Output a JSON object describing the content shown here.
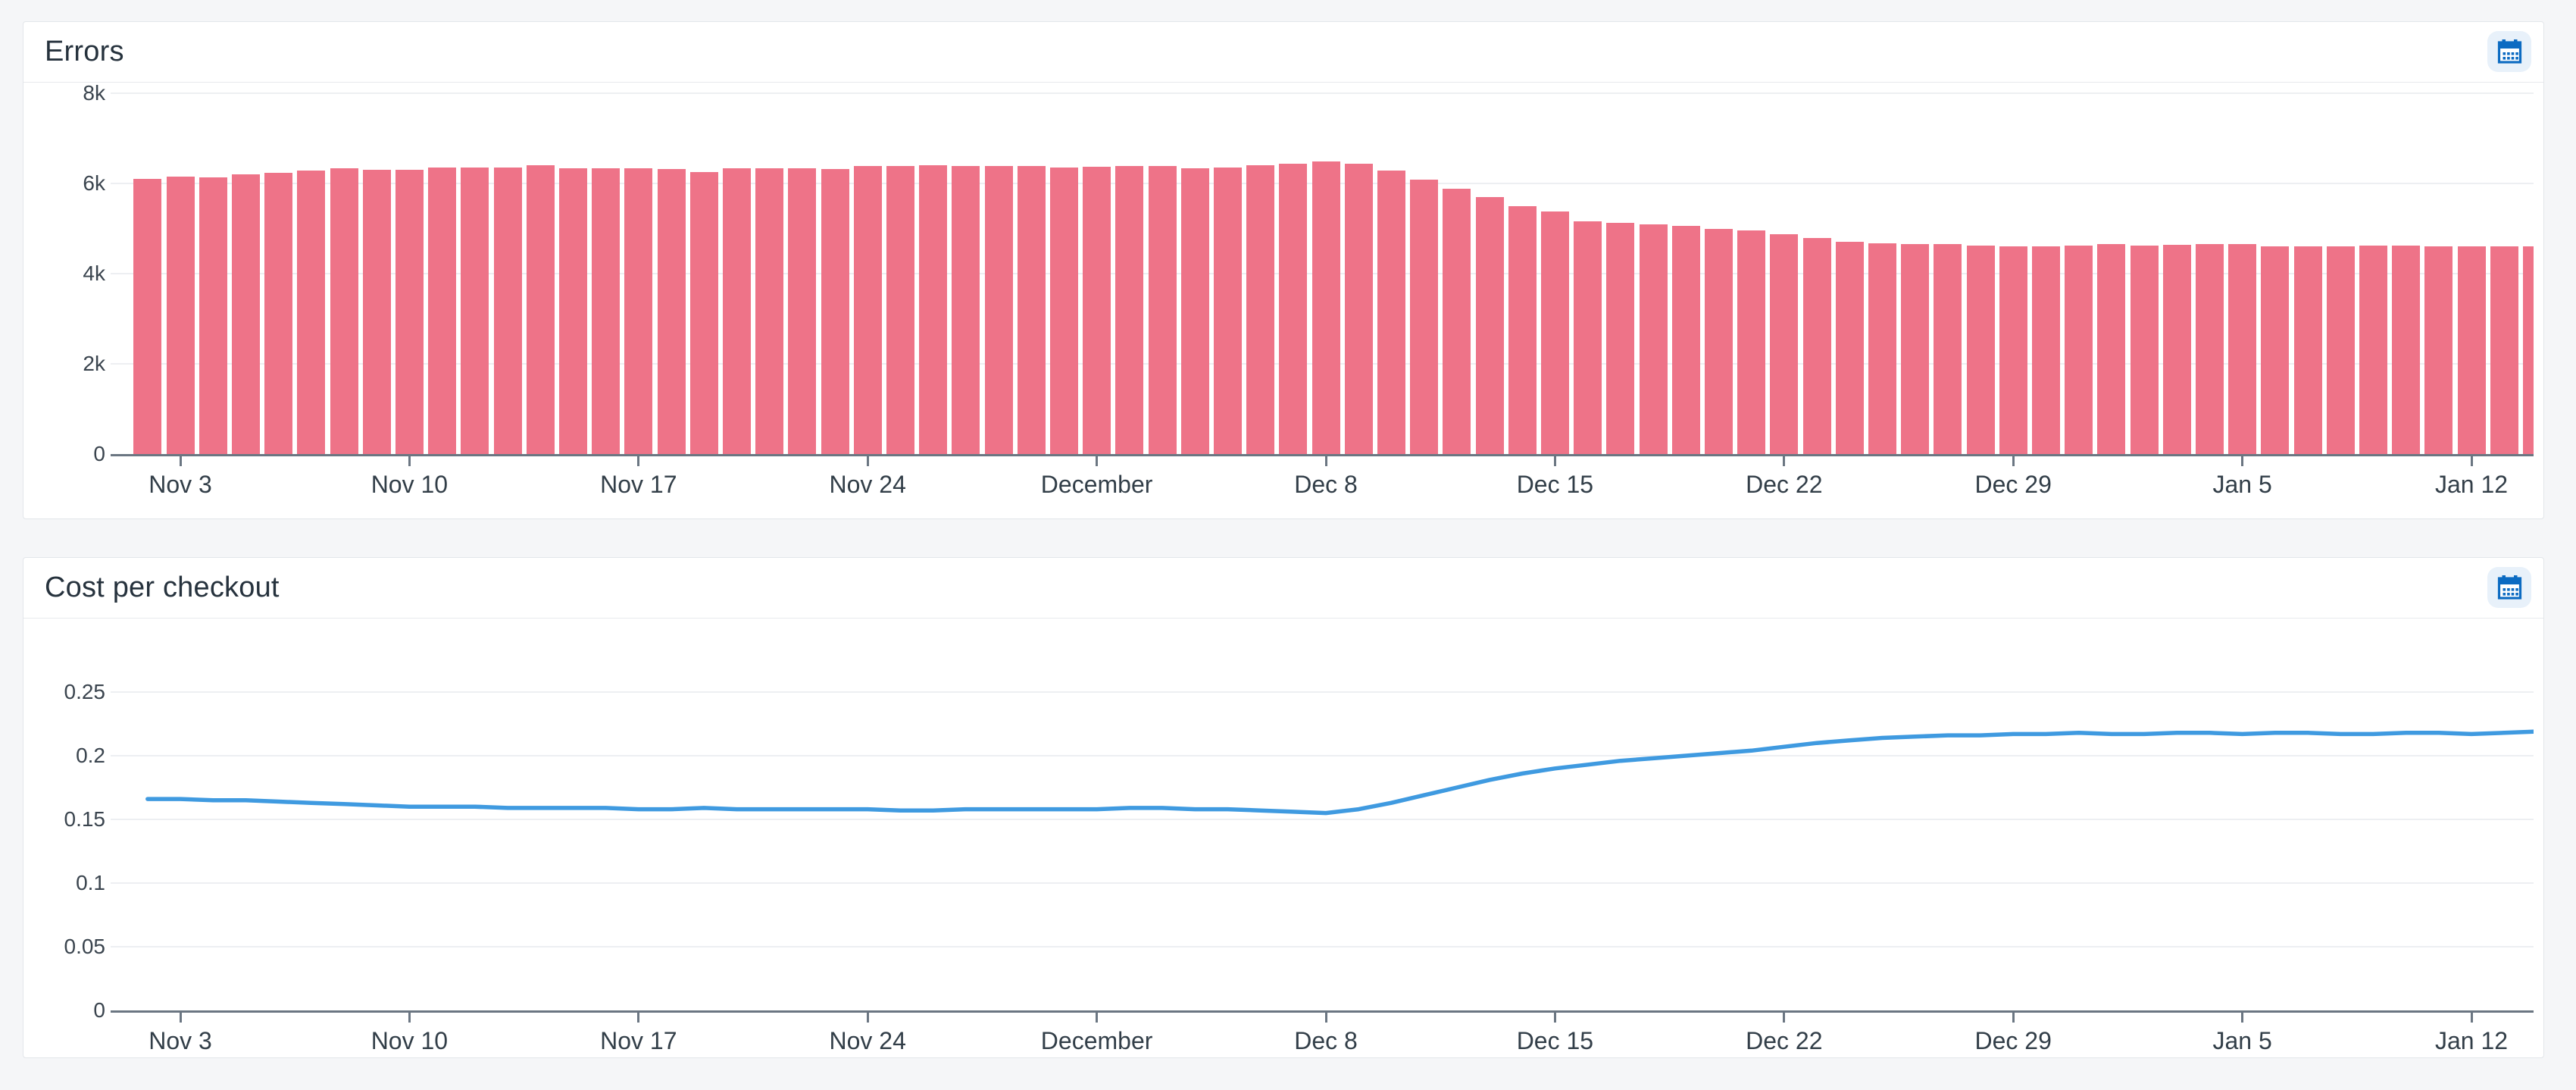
{
  "page": {
    "background": "#f5f6f8"
  },
  "panels": [
    {
      "title": "Errors"
    },
    {
      "title": "Cost per checkout"
    }
  ],
  "icons": {
    "calendar": {
      "name": "calendar-icon",
      "color": "#0c6bc2",
      "background": "#e8f1fa"
    }
  },
  "colors": {
    "bar": "#ee7388",
    "line": "#3f9ae0",
    "axis": "#6b7682",
    "grid": "#edeff2",
    "title_text": "#26323d",
    "label_text": "#323e48"
  },
  "chart_data": [
    {
      "type": "bar",
      "title": "Errors",
      "color": "#ee7388",
      "ylim": [
        0,
        8000
      ],
      "grid": true,
      "legend": false,
      "yticks": [
        {
          "label": "0",
          "value": 0
        },
        {
          "label": "2k",
          "value": 2000
        },
        {
          "label": "4k",
          "value": 4000
        },
        {
          "label": "6k",
          "value": 6000
        },
        {
          "label": "8k",
          "value": 8000
        }
      ],
      "xticks": [
        {
          "label": "Nov 3",
          "day_index": 1
        },
        {
          "label": "Nov 10",
          "day_index": 8
        },
        {
          "label": "Nov 17",
          "day_index": 15
        },
        {
          "label": "Nov 24",
          "day_index": 22
        },
        {
          "label": "December",
          "day_index": 29
        },
        {
          "label": "Dec 8",
          "day_index": 36
        },
        {
          "label": "Dec 15",
          "day_index": 43
        },
        {
          "label": "Dec 22",
          "day_index": 50
        },
        {
          "label": "Dec 29",
          "day_index": 57
        },
        {
          "label": "Jan 5",
          "day_index": 64
        },
        {
          "label": "Jan 12",
          "day_index": 71
        }
      ],
      "x": [
        "Nov 2",
        "Nov 3",
        "Nov 4",
        "Nov 5",
        "Nov 6",
        "Nov 7",
        "Nov 8",
        "Nov 9",
        "Nov 10",
        "Nov 11",
        "Nov 12",
        "Nov 13",
        "Nov 14",
        "Nov 15",
        "Nov 16",
        "Nov 17",
        "Nov 18",
        "Nov 19",
        "Nov 20",
        "Nov 21",
        "Nov 22",
        "Nov 23",
        "Nov 24",
        "Nov 25",
        "Nov 26",
        "Nov 27",
        "Nov 28",
        "Nov 29",
        "Nov 30",
        "Dec 1",
        "Dec 2",
        "Dec 3",
        "Dec 4",
        "Dec 5",
        "Dec 6",
        "Dec 7",
        "Dec 8",
        "Dec 9",
        "Dec 10",
        "Dec 11",
        "Dec 12",
        "Dec 13",
        "Dec 14",
        "Dec 15",
        "Dec 16",
        "Dec 17",
        "Dec 18",
        "Dec 19",
        "Dec 20",
        "Dec 21",
        "Dec 22",
        "Dec 23",
        "Dec 24",
        "Dec 25",
        "Dec 26",
        "Dec 27",
        "Dec 28",
        "Dec 29",
        "Dec 30",
        "Dec 31",
        "Jan 1",
        "Jan 2",
        "Jan 3",
        "Jan 4",
        "Jan 5",
        "Jan 6",
        "Jan 7",
        "Jan 8",
        "Jan 9",
        "Jan 10",
        "Jan 11",
        "Jan 12",
        "Jan 13",
        "Jan 14"
      ],
      "values": [
        6100,
        6150,
        6130,
        6200,
        6240,
        6280,
        6330,
        6310,
        6310,
        6360,
        6360,
        6350,
        6400,
        6330,
        6330,
        6330,
        6320,
        6260,
        6330,
        6330,
        6330,
        6320,
        6380,
        6390,
        6410,
        6380,
        6380,
        6380,
        6350,
        6370,
        6390,
        6380,
        6340,
        6350,
        6400,
        6440,
        6480,
        6440,
        6290,
        6090,
        5880,
        5700,
        5500,
        5380,
        5160,
        5120,
        5100,
        5060,
        5000,
        4950,
        4870,
        4790,
        4700,
        4680,
        4660,
        4650,
        4620,
        4600,
        4600,
        4630,
        4650,
        4620,
        4640,
        4660,
        4650,
        4610,
        4600,
        4600,
        4620,
        4630,
        4600,
        4610,
        4600,
        4600
      ]
    },
    {
      "type": "line",
      "title": "Cost per checkout",
      "color": "#3f9ae0",
      "ylim": [
        0,
        0.25
      ],
      "grid": true,
      "legend": false,
      "yticks": [
        {
          "label": "0",
          "value": 0
        },
        {
          "label": "0.05",
          "value": 0.05
        },
        {
          "label": "0.1",
          "value": 0.1
        },
        {
          "label": "0.15",
          "value": 0.15
        },
        {
          "label": "0.2",
          "value": 0.2
        },
        {
          "label": "0.25",
          "value": 0.25
        }
      ],
      "xticks": [
        {
          "label": "Nov 3",
          "day_index": 1
        },
        {
          "label": "Nov 10",
          "day_index": 8
        },
        {
          "label": "Nov 17",
          "day_index": 15
        },
        {
          "label": "Nov 24",
          "day_index": 22
        },
        {
          "label": "December",
          "day_index": 29
        },
        {
          "label": "Dec 8",
          "day_index": 36
        },
        {
          "label": "Dec 15",
          "day_index": 43
        },
        {
          "label": "Dec 22",
          "day_index": 50
        },
        {
          "label": "Dec 29",
          "day_index": 57
        },
        {
          "label": "Jan 5",
          "day_index": 64
        },
        {
          "label": "Jan 12",
          "day_index": 71
        }
      ],
      "x": [
        "Nov 2",
        "Nov 3",
        "Nov 4",
        "Nov 5",
        "Nov 6",
        "Nov 7",
        "Nov 8",
        "Nov 9",
        "Nov 10",
        "Nov 11",
        "Nov 12",
        "Nov 13",
        "Nov 14",
        "Nov 15",
        "Nov 16",
        "Nov 17",
        "Nov 18",
        "Nov 19",
        "Nov 20",
        "Nov 21",
        "Nov 22",
        "Nov 23",
        "Nov 24",
        "Nov 25",
        "Nov 26",
        "Nov 27",
        "Nov 28",
        "Nov 29",
        "Nov 30",
        "Dec 1",
        "Dec 2",
        "Dec 3",
        "Dec 4",
        "Dec 5",
        "Dec 6",
        "Dec 7",
        "Dec 8",
        "Dec 9",
        "Dec 10",
        "Dec 11",
        "Dec 12",
        "Dec 13",
        "Dec 14",
        "Dec 15",
        "Dec 16",
        "Dec 17",
        "Dec 18",
        "Dec 19",
        "Dec 20",
        "Dec 21",
        "Dec 22",
        "Dec 23",
        "Dec 24",
        "Dec 25",
        "Dec 26",
        "Dec 27",
        "Dec 28",
        "Dec 29",
        "Dec 30",
        "Dec 31",
        "Jan 1",
        "Jan 2",
        "Jan 3",
        "Jan 4",
        "Jan 5",
        "Jan 6",
        "Jan 7",
        "Jan 8",
        "Jan 9",
        "Jan 10",
        "Jan 11",
        "Jan 12",
        "Jan 13",
        "Jan 14"
      ],
      "values": [
        0.166,
        0.166,
        0.165,
        0.165,
        0.164,
        0.163,
        0.162,
        0.161,
        0.16,
        0.16,
        0.16,
        0.159,
        0.159,
        0.159,
        0.159,
        0.158,
        0.158,
        0.159,
        0.158,
        0.158,
        0.158,
        0.158,
        0.158,
        0.157,
        0.157,
        0.158,
        0.158,
        0.158,
        0.158,
        0.158,
        0.159,
        0.159,
        0.158,
        0.158,
        0.157,
        0.156,
        0.155,
        0.158,
        0.163,
        0.169,
        0.175,
        0.181,
        0.186,
        0.19,
        0.193,
        0.196,
        0.198,
        0.2,
        0.202,
        0.204,
        0.207,
        0.21,
        0.212,
        0.214,
        0.215,
        0.216,
        0.216,
        0.217,
        0.217,
        0.218,
        0.217,
        0.217,
        0.218,
        0.218,
        0.217,
        0.218,
        0.218,
        0.217,
        0.217,
        0.218,
        0.218,
        0.217,
        0.218,
        0.219
      ]
    }
  ]
}
